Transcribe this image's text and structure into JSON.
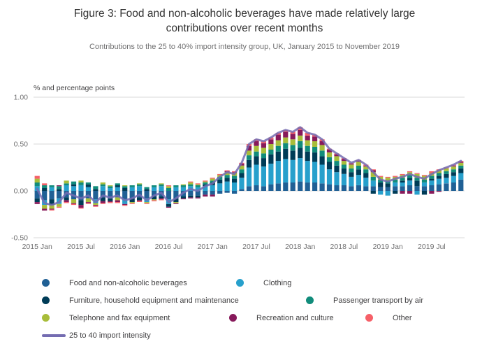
{
  "chart_data": {
    "type": "bar",
    "stacked": true,
    "title": "Figure 3: Food and non-alcoholic beverages have made relatively large contributions over recent months",
    "subtitle": "Contributions to the 25 to 40% import intensity group, UK, January 2015 to November 2019",
    "ylabel": "% and percentage points",
    "ylim": [
      -0.5,
      1.0
    ],
    "yticks": [
      1.0,
      0.5,
      0.0,
      -0.5
    ],
    "xticks": [
      "2015 Jan",
      "2015 Jul",
      "2016 Jan",
      "2016 Jul",
      "2017 Jan",
      "2017 Jul",
      "2018 Jan",
      "2018 Jul",
      "2019 Jan",
      "2019 Jul"
    ],
    "xtick_every": 6,
    "grid": true,
    "legend_position": "bottom",
    "series": [
      {
        "name": "Food and non-alcoholic beverages",
        "color": "#206095",
        "values": [
          -0.08,
          -0.1,
          -0.09,
          -0.08,
          -0.07,
          -0.09,
          -0.1,
          -0.08,
          -0.09,
          -0.07,
          -0.08,
          -0.07,
          -0.09,
          -0.08,
          -0.07,
          -0.08,
          -0.06,
          -0.06,
          -0.09,
          -0.08,
          -0.06,
          -0.05,
          -0.05,
          -0.04,
          -0.04,
          -0.03,
          -0.02,
          -0.03,
          0.02,
          0.05,
          0.06,
          0.05,
          0.07,
          0.08,
          0.09,
          0.09,
          0.1,
          0.09,
          0.09,
          0.08,
          0.07,
          0.06,
          0.06,
          0.05,
          0.06,
          0.05,
          0.05,
          0.04,
          0.04,
          0.05,
          0.05,
          0.06,
          0.05,
          0.05,
          0.06,
          0.07,
          0.08,
          0.09,
          0.12
        ]
      },
      {
        "name": "Clothing",
        "color": "#27A0CC",
        "values": [
          0.05,
          -0.05,
          0.04,
          -0.06,
          0.06,
          0.05,
          0.06,
          0.04,
          -0.04,
          0.05,
          0.03,
          0.04,
          -0.05,
          0.04,
          0.05,
          -0.04,
          0.04,
          0.05,
          -0.05,
          0.04,
          0.04,
          0.05,
          0.04,
          0.05,
          0.06,
          0.08,
          0.1,
          0.09,
          0.12,
          0.2,
          0.22,
          0.21,
          0.22,
          0.24,
          0.25,
          0.24,
          0.25,
          0.23,
          0.22,
          0.2,
          0.16,
          0.14,
          0.12,
          0.1,
          0.11,
          0.09,
          0.06,
          -0.04,
          -0.05,
          0.04,
          0.04,
          0.05,
          -0.04,
          0.04,
          0.05,
          0.06,
          0.06,
          0.07,
          0.07
        ]
      },
      {
        "name": "Furniture, household equipment and maintenance",
        "color": "#003C57",
        "values": [
          -0.04,
          0.03,
          -0.06,
          0.02,
          -0.03,
          0.02,
          -0.05,
          0.03,
          0.02,
          -0.04,
          -0.03,
          0.02,
          0.03,
          -0.04,
          -0.03,
          0.02,
          -0.03,
          -0.02,
          -0.03,
          -0.04,
          -0.02,
          -0.02,
          -0.02,
          0.02,
          0.03,
          0.04,
          0.04,
          0.04,
          0.05,
          0.08,
          0.09,
          0.09,
          0.1,
          0.1,
          0.11,
          0.1,
          0.11,
          0.1,
          0.1,
          0.09,
          0.08,
          0.07,
          0.06,
          0.05,
          0.06,
          0.05,
          -0.03,
          0.05,
          0.04,
          -0.03,
          0.02,
          0.03,
          0.06,
          -0.04,
          0.02,
          0.03,
          0.04,
          0.04,
          0.05
        ]
      },
      {
        "name": "Passenger transport by air",
        "color": "#118C7B",
        "values": [
          0.04,
          0.03,
          0.02,
          0.03,
          0.02,
          0.03,
          0.03,
          0.02,
          0.03,
          0.02,
          0.02,
          0.02,
          0.02,
          0.02,
          0.02,
          0.02,
          0.02,
          0.02,
          0.03,
          0.02,
          0.02,
          0.02,
          0.02,
          0.02,
          0.02,
          0.03,
          0.03,
          0.03,
          0.04,
          0.05,
          0.05,
          0.05,
          0.05,
          0.06,
          0.06,
          0.06,
          0.07,
          0.06,
          0.06,
          0.06,
          0.05,
          0.05,
          0.04,
          0.04,
          0.04,
          0.04,
          0.04,
          0.03,
          0.03,
          0.03,
          0.03,
          0.03,
          0.03,
          0.03,
          0.03,
          0.03,
          0.03,
          0.03,
          0.03
        ]
      },
      {
        "name": "Telephone and fax equipment",
        "color": "#A8BD3A",
        "values": [
          0.04,
          -0.04,
          -0.04,
          -0.03,
          0.03,
          -0.04,
          0.02,
          -0.04,
          -0.02,
          0.02,
          0.01,
          -0.03,
          0.01,
          -0.01,
          0.01,
          -0.01,
          -0.01,
          0.01,
          0.02,
          -0.01,
          0.01,
          0.02,
          0.01,
          0.01,
          0.02,
          0.02,
          0.03,
          0.03,
          0.04,
          0.05,
          0.06,
          0.06,
          0.06,
          0.06,
          0.06,
          0.06,
          0.06,
          0.06,
          0.06,
          0.06,
          0.05,
          0.05,
          0.04,
          0.04,
          0.04,
          0.03,
          0.05,
          0.03,
          0.03,
          0.03,
          0.03,
          0.03,
          0.04,
          0.04,
          0.03,
          0.03,
          0.03,
          0.03,
          0.03
        ]
      },
      {
        "name": "Recreation and culture",
        "color": "#871A5B",
        "values": [
          -0.02,
          -0.02,
          -0.01,
          0.01,
          -0.02,
          -0.01,
          -0.03,
          -0.01,
          -0.01,
          -0.02,
          -0.01,
          -0.02,
          -0.01,
          0.0,
          -0.01,
          0.0,
          0.0,
          -0.01,
          -0.01,
          -0.01,
          -0.01,
          -0.01,
          -0.01,
          -0.02,
          -0.02,
          0.0,
          0.01,
          0.01,
          0.02,
          0.05,
          0.05,
          0.05,
          0.05,
          0.06,
          0.06,
          0.06,
          0.06,
          0.05,
          0.05,
          0.04,
          0.03,
          0.02,
          0.02,
          0.01,
          0.01,
          0.01,
          0.02,
          0.0,
          0.0,
          0.0,
          -0.03,
          -0.03,
          0.0,
          0.0,
          -0.03,
          -0.01,
          0.0,
          0.01,
          0.01
        ]
      },
      {
        "name": "Other",
        "color": "#F66068",
        "values": [
          0.03,
          0.02,
          -0.01,
          -0.01,
          -0.01,
          -0.01,
          -0.01,
          -0.01,
          -0.01,
          -0.01,
          -0.01,
          -0.01,
          -0.01,
          -0.01,
          -0.01,
          -0.01,
          -0.01,
          -0.01,
          0.01,
          0.0,
          0.0,
          0.01,
          0.01,
          0.01,
          0.01,
          0.01,
          0.01,
          0.01,
          0.01,
          0.02,
          0.02,
          0.02,
          0.02,
          0.02,
          0.02,
          0.02,
          0.03,
          0.03,
          0.02,
          0.02,
          0.01,
          0.01,
          0.01,
          0.01,
          0.01,
          0.01,
          0.01,
          0.01,
          0.01,
          0.01,
          0.01,
          0.01,
          0.01,
          0.01,
          0.02,
          0.01,
          0.01,
          0.01,
          0.01
        ]
      }
    ],
    "line": {
      "name": "25 to 40 import intensity",
      "color": "#746CB1",
      "values": [
        0.02,
        -0.13,
        -0.15,
        -0.12,
        -0.02,
        -0.05,
        -0.08,
        -0.05,
        -0.12,
        -0.05,
        -0.07,
        -0.05,
        -0.1,
        -0.08,
        -0.04,
        -0.1,
        -0.05,
        -0.02,
        -0.12,
        -0.08,
        -0.02,
        0.02,
        0.0,
        0.05,
        0.08,
        0.15,
        0.2,
        0.18,
        0.3,
        0.5,
        0.55,
        0.53,
        0.57,
        0.62,
        0.65,
        0.63,
        0.68,
        0.62,
        0.6,
        0.55,
        0.45,
        0.4,
        0.35,
        0.3,
        0.33,
        0.28,
        0.2,
        0.12,
        0.1,
        0.13,
        0.15,
        0.18,
        0.15,
        0.13,
        0.18,
        0.22,
        0.25,
        0.28,
        0.32
      ]
    }
  }
}
